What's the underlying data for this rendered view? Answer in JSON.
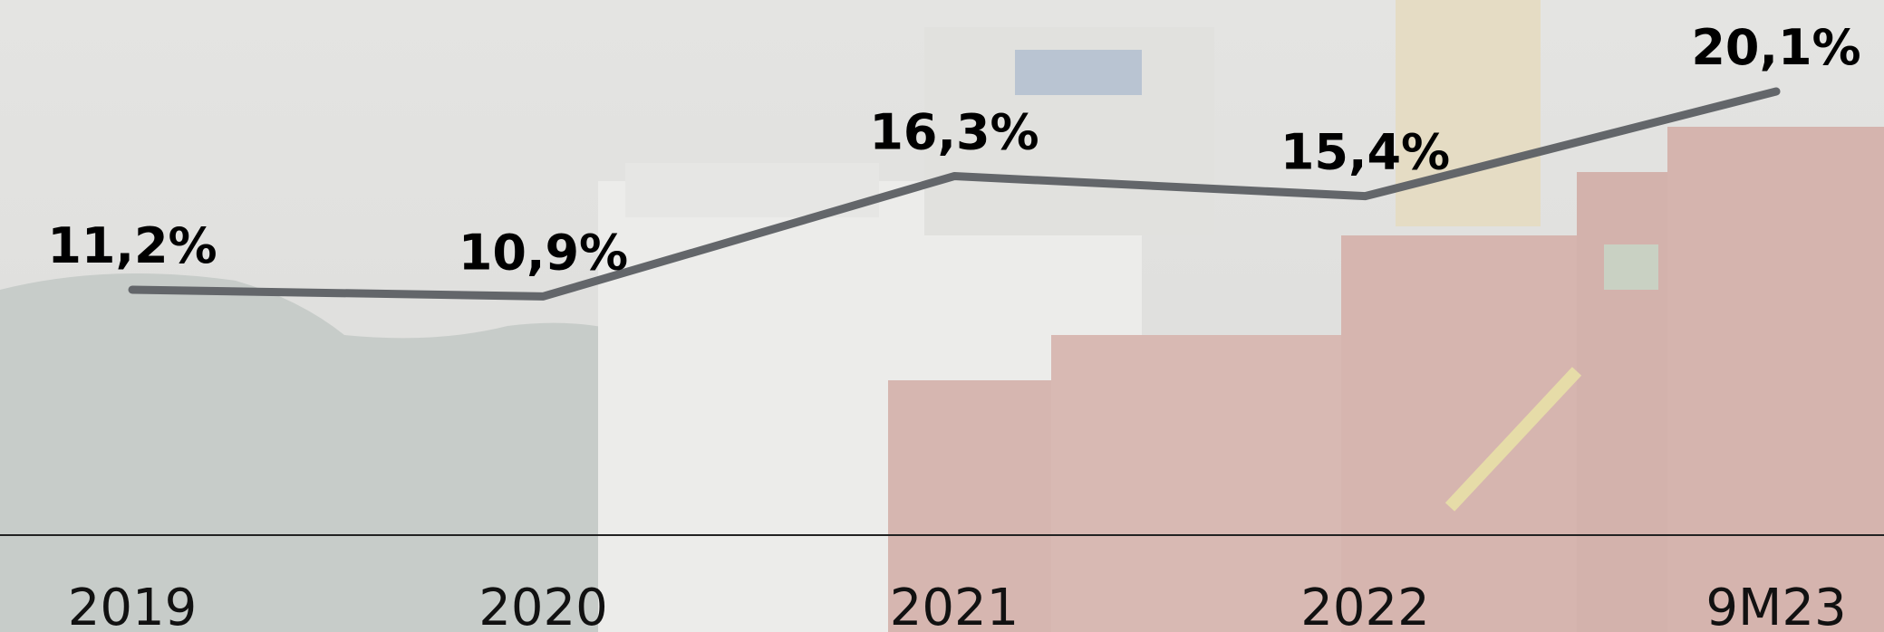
{
  "chart_data": {
    "type": "line",
    "categories": [
      "2019",
      "2020",
      "2021",
      "2022",
      "9M23"
    ],
    "values": [
      11.2,
      10.9,
      16.3,
      15.4,
      20.1
    ],
    "value_labels": [
      "11,2%",
      "10,9%",
      "16,3%",
      "15,4%",
      "20,1%"
    ],
    "color": "#63666a"
  }
}
